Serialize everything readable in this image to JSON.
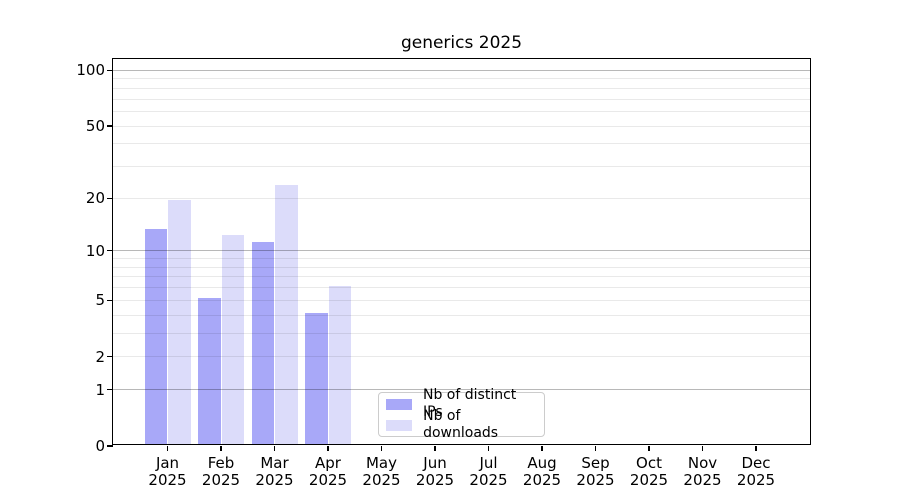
{
  "chart_data": {
    "type": "bar",
    "title": "generics 2025",
    "categories": [
      "Jan",
      "Feb",
      "Mar",
      "Apr",
      "May",
      "Jun",
      "Jul",
      "Aug",
      "Sep",
      "Oct",
      "Nov",
      "Dec"
    ],
    "category_sublabel": "2025",
    "series": [
      {
        "name": "Nb of distinct IPs",
        "color": "#a8a8f8",
        "values": [
          13,
          5,
          11,
          4,
          0,
          0,
          0,
          0,
          0,
          0,
          0,
          0
        ]
      },
      {
        "name": "Nb of downloads",
        "color": "#dcdcfa",
        "values": [
          19,
          12,
          23,
          6,
          0,
          0,
          0,
          0,
          0,
          0,
          0,
          0
        ]
      }
    ],
    "y_scale": "log1p",
    "ylim": [
      0,
      115
    ],
    "y_ticks": [
      0,
      1,
      2,
      5,
      10,
      20,
      50,
      100
    ],
    "grid_major": [
      1,
      10,
      100
    ],
    "grid_minor": [
      2,
      3,
      4,
      5,
      6,
      7,
      8,
      9,
      20,
      30,
      40,
      50,
      60,
      70,
      80,
      90
    ],
    "grid": "on",
    "legend_position": "lower center",
    "xlabel": "",
    "ylabel": ""
  }
}
